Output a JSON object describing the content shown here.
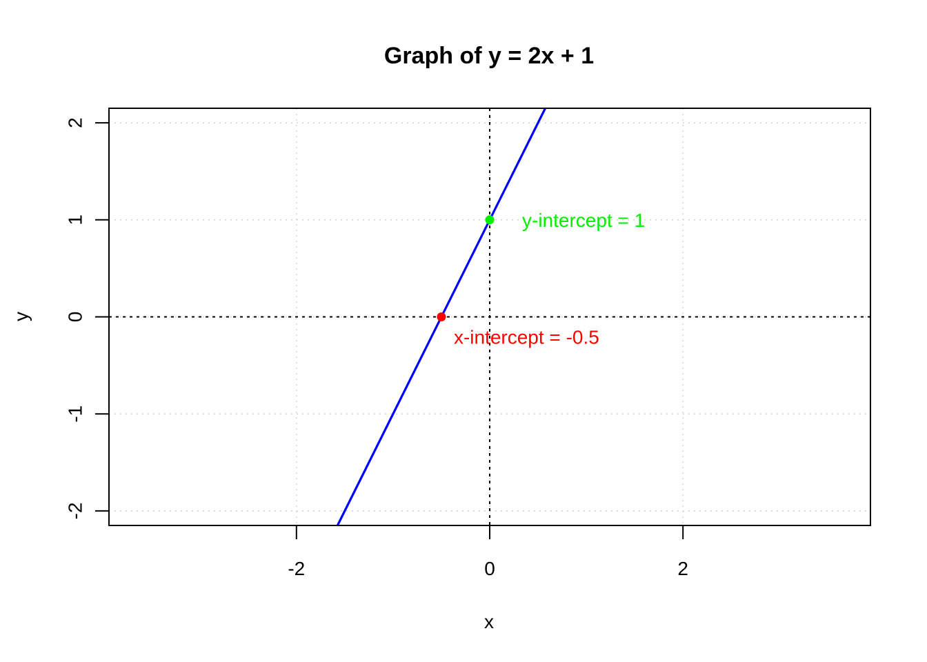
{
  "chart_data": {
    "type": "line",
    "title": "Graph of y = 2x + 1",
    "xlabel": "x",
    "ylabel": "y",
    "xlim": [
      -3.94,
      3.94
    ],
    "ylim": [
      -2.15,
      2.15
    ],
    "x_ticks": [
      -2,
      0,
      2
    ],
    "x_tick_labels": [
      "-2",
      "0",
      "2"
    ],
    "y_ticks": [
      -2,
      -1,
      0,
      1,
      2
    ],
    "y_tick_labels": [
      "-2",
      "-1",
      "0",
      "1",
      "2"
    ],
    "grid": true,
    "series": [
      {
        "equation": "y = 2x + 1",
        "x": [
          -1.575,
          0.575
        ],
        "y": [
          -2.15,
          2.15
        ],
        "color": "#0000ff"
      }
    ],
    "points": [
      {
        "x": -0.5,
        "y": 0,
        "color": "#ff0000",
        "label": "x-intercept = -0.5"
      },
      {
        "x": 0,
        "y": 1,
        "color": "#00ee00",
        "label": "y-intercept = 1"
      }
    ],
    "reference_lines": [
      {
        "orientation": "horizontal",
        "value": 0
      },
      {
        "orientation": "vertical",
        "value": 0
      }
    ]
  }
}
